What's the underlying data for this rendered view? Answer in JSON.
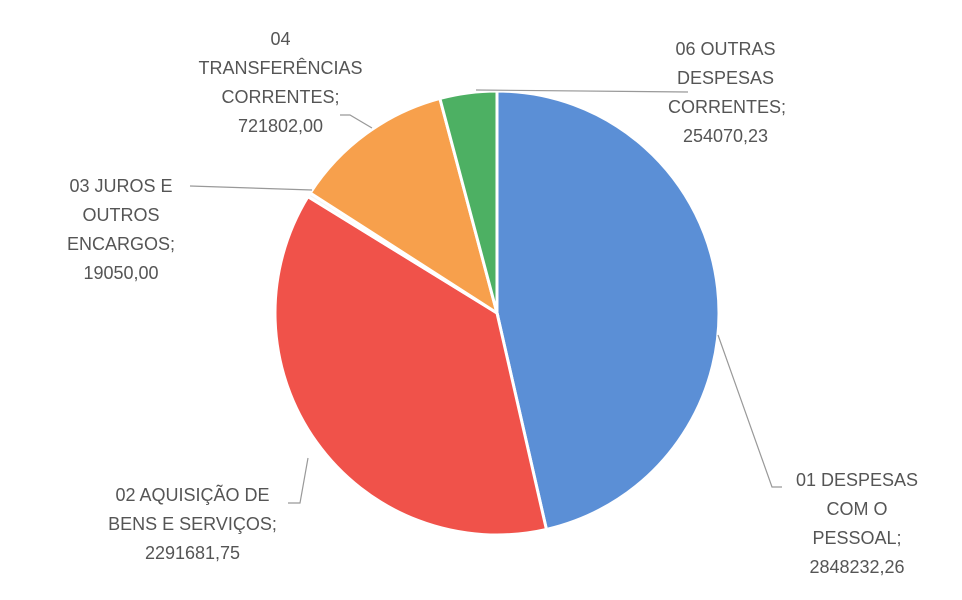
{
  "chart_data": {
    "type": "pie",
    "categories": [
      "01 DESPESAS COM O PESSOAL;",
      "02 AQUISIÇÃO DE BENS E SERVIÇOS;",
      "03 JUROS E OUTROS ENCARGOS;",
      "04 TRANSFERÊNCIAS CORRENTES;",
      "06 OUTRAS DESPESAS CORRENTES;"
    ],
    "values": [
      2848232.26,
      2291681.75,
      19050.0,
      721802.0,
      254070.23
    ],
    "value_labels": [
      "2848232,26",
      "2291681,75",
      "19050,00",
      "721802,00",
      "254070,23"
    ],
    "colors": [
      "#5b8fd6",
      "#f0524a",
      "#f4f4f4",
      "#f7a04c",
      "#4db063"
    ]
  }
}
